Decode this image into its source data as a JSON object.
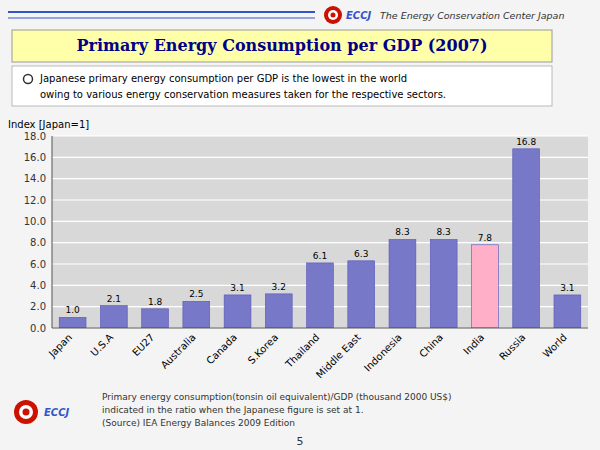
{
  "chart_data": {
    "type": "bar",
    "title": "Primary Energy Consumption per GDP (2007)",
    "ylabel": "Index [Japan=1]",
    "categories": [
      "Japan",
      "U.S.A",
      "EU27",
      "Australia",
      "Canada",
      "S.Korea",
      "Thailand",
      "Middle East",
      "Indonesia",
      "China",
      "India",
      "Russia",
      "World"
    ],
    "values": [
      1.0,
      2.1,
      1.8,
      2.5,
      3.1,
      3.2,
      6.1,
      6.3,
      8.3,
      8.3,
      7.8,
      16.8,
      3.1
    ],
    "value_labels": [
      "1.0",
      "2.1",
      "1.8",
      "2.5",
      "3.1",
      "3.2",
      "6.1",
      "6.3",
      "8.3",
      "8.3",
      "7.8",
      "16.8",
      "3.1"
    ],
    "colors": [
      "#7878c8",
      "#7878c8",
      "#7878c8",
      "#7878c8",
      "#7878c8",
      "#7878c8",
      "#7878c8",
      "#7878c8",
      "#7878c8",
      "#7878c8",
      "#ffb0c8",
      "#7878c8",
      "#7878c8"
    ],
    "ylim": [
      0,
      18.0
    ],
    "yticks": [
      {
        "value": 0,
        "label": "0.0"
      },
      {
        "value": 2,
        "label": "2.0"
      },
      {
        "value": 4,
        "label": "4.0"
      },
      {
        "value": 6,
        "label": "6.0"
      },
      {
        "value": 8,
        "label": "8.0"
      },
      {
        "value": 10,
        "label": "10.0"
      },
      {
        "value": 12,
        "label": "12.0"
      },
      {
        "value": 14,
        "label": "14.0"
      },
      {
        "value": 16,
        "label": "16.0"
      },
      {
        "value": 18,
        "label": "18.0"
      }
    ],
    "grid": true,
    "data_labels": true,
    "annotations": [
      "ECCJ",
      "The Energy Conservation Center Japan",
      "Japanese primary energy consumption per GDP is the lowest in the world",
      "owing to various energy conservation measures taken for the respective sectors.",
      "Primary energy consumption(tonsin oil equivalent)/GDP (thousand 2000 US$)",
      "indicated in the ratio when the Japanese figure is set at 1.",
      "(Source) IEA Energy Balances 2009 Edition",
      "5"
    ]
  }
}
